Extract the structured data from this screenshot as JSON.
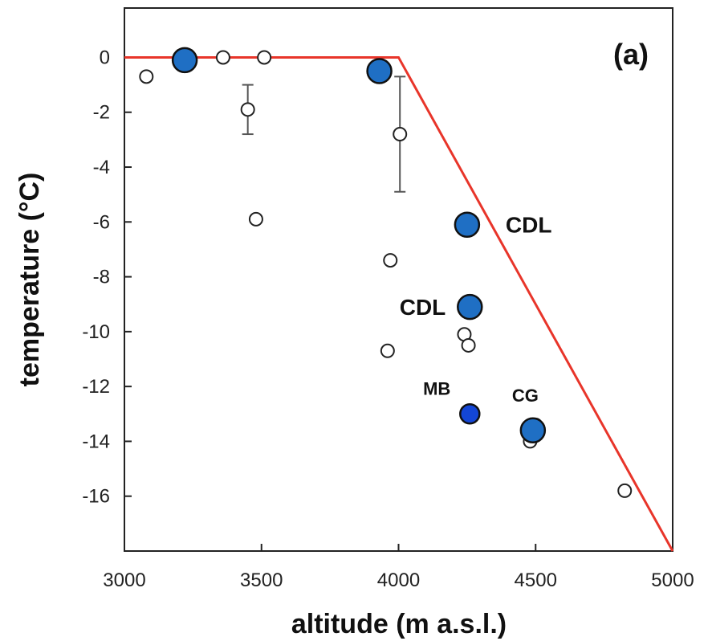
{
  "chart_data": {
    "type": "scatter",
    "panel_label": "(a)",
    "xlabel": "altitude (m a.s.l.)",
    "ylabel": "temperature (°C)",
    "xlim": [
      3000,
      5000
    ],
    "ylim": [
      -18,
      1.8
    ],
    "xticks": [
      3000,
      3500,
      4000,
      4500,
      5000
    ],
    "yticks": [
      0,
      -2,
      -4,
      -6,
      -8,
      -10,
      -12,
      -14,
      -16
    ],
    "grid": false,
    "colors": {
      "line": "#e8352a",
      "filled_marker": "#1f6fc4",
      "filled_marker_dark": "#1346d6",
      "open_marker": "#ffffff",
      "axis": "#222222"
    },
    "line": {
      "x": [
        3000,
        4000,
        5000
      ],
      "y": [
        0,
        0,
        -18
      ]
    },
    "open_points": [
      {
        "x": 3080,
        "y": -0.7
      },
      {
        "x": 3360,
        "y": 0.0
      },
      {
        "x": 3510,
        "y": 0.0
      },
      {
        "x": 3450,
        "y": -1.9,
        "err_low": -2.8,
        "err_high": -1.0
      },
      {
        "x": 3480,
        "y": -5.9
      },
      {
        "x": 4005,
        "y": -2.8,
        "err_low": -4.9,
        "err_high": -0.7
      },
      {
        "x": 3970,
        "y": -7.4
      },
      {
        "x": 3960,
        "y": -10.7
      },
      {
        "x": 4240,
        "y": -10.1
      },
      {
        "x": 4255,
        "y": -10.5
      },
      {
        "x": 4480,
        "y": -14.0
      },
      {
        "x": 4500,
        "y": -13.4
      },
      {
        "x": 4825,
        "y": -15.8
      }
    ],
    "filled_points": [
      {
        "x": 3220,
        "y": -0.1,
        "size": "large",
        "label": ""
      },
      {
        "x": 3930,
        "y": -0.5,
        "size": "large",
        "label": ""
      },
      {
        "x": 4250,
        "y": -6.1,
        "size": "large",
        "label": "CDL"
      },
      {
        "x": 4260,
        "y": -9.1,
        "size": "large",
        "label": "CDL"
      },
      {
        "x": 4260,
        "y": -13.0,
        "size": "small",
        "label": "MB"
      },
      {
        "x": 4490,
        "y": -13.6,
        "size": "large",
        "label": "CG"
      }
    ]
  }
}
